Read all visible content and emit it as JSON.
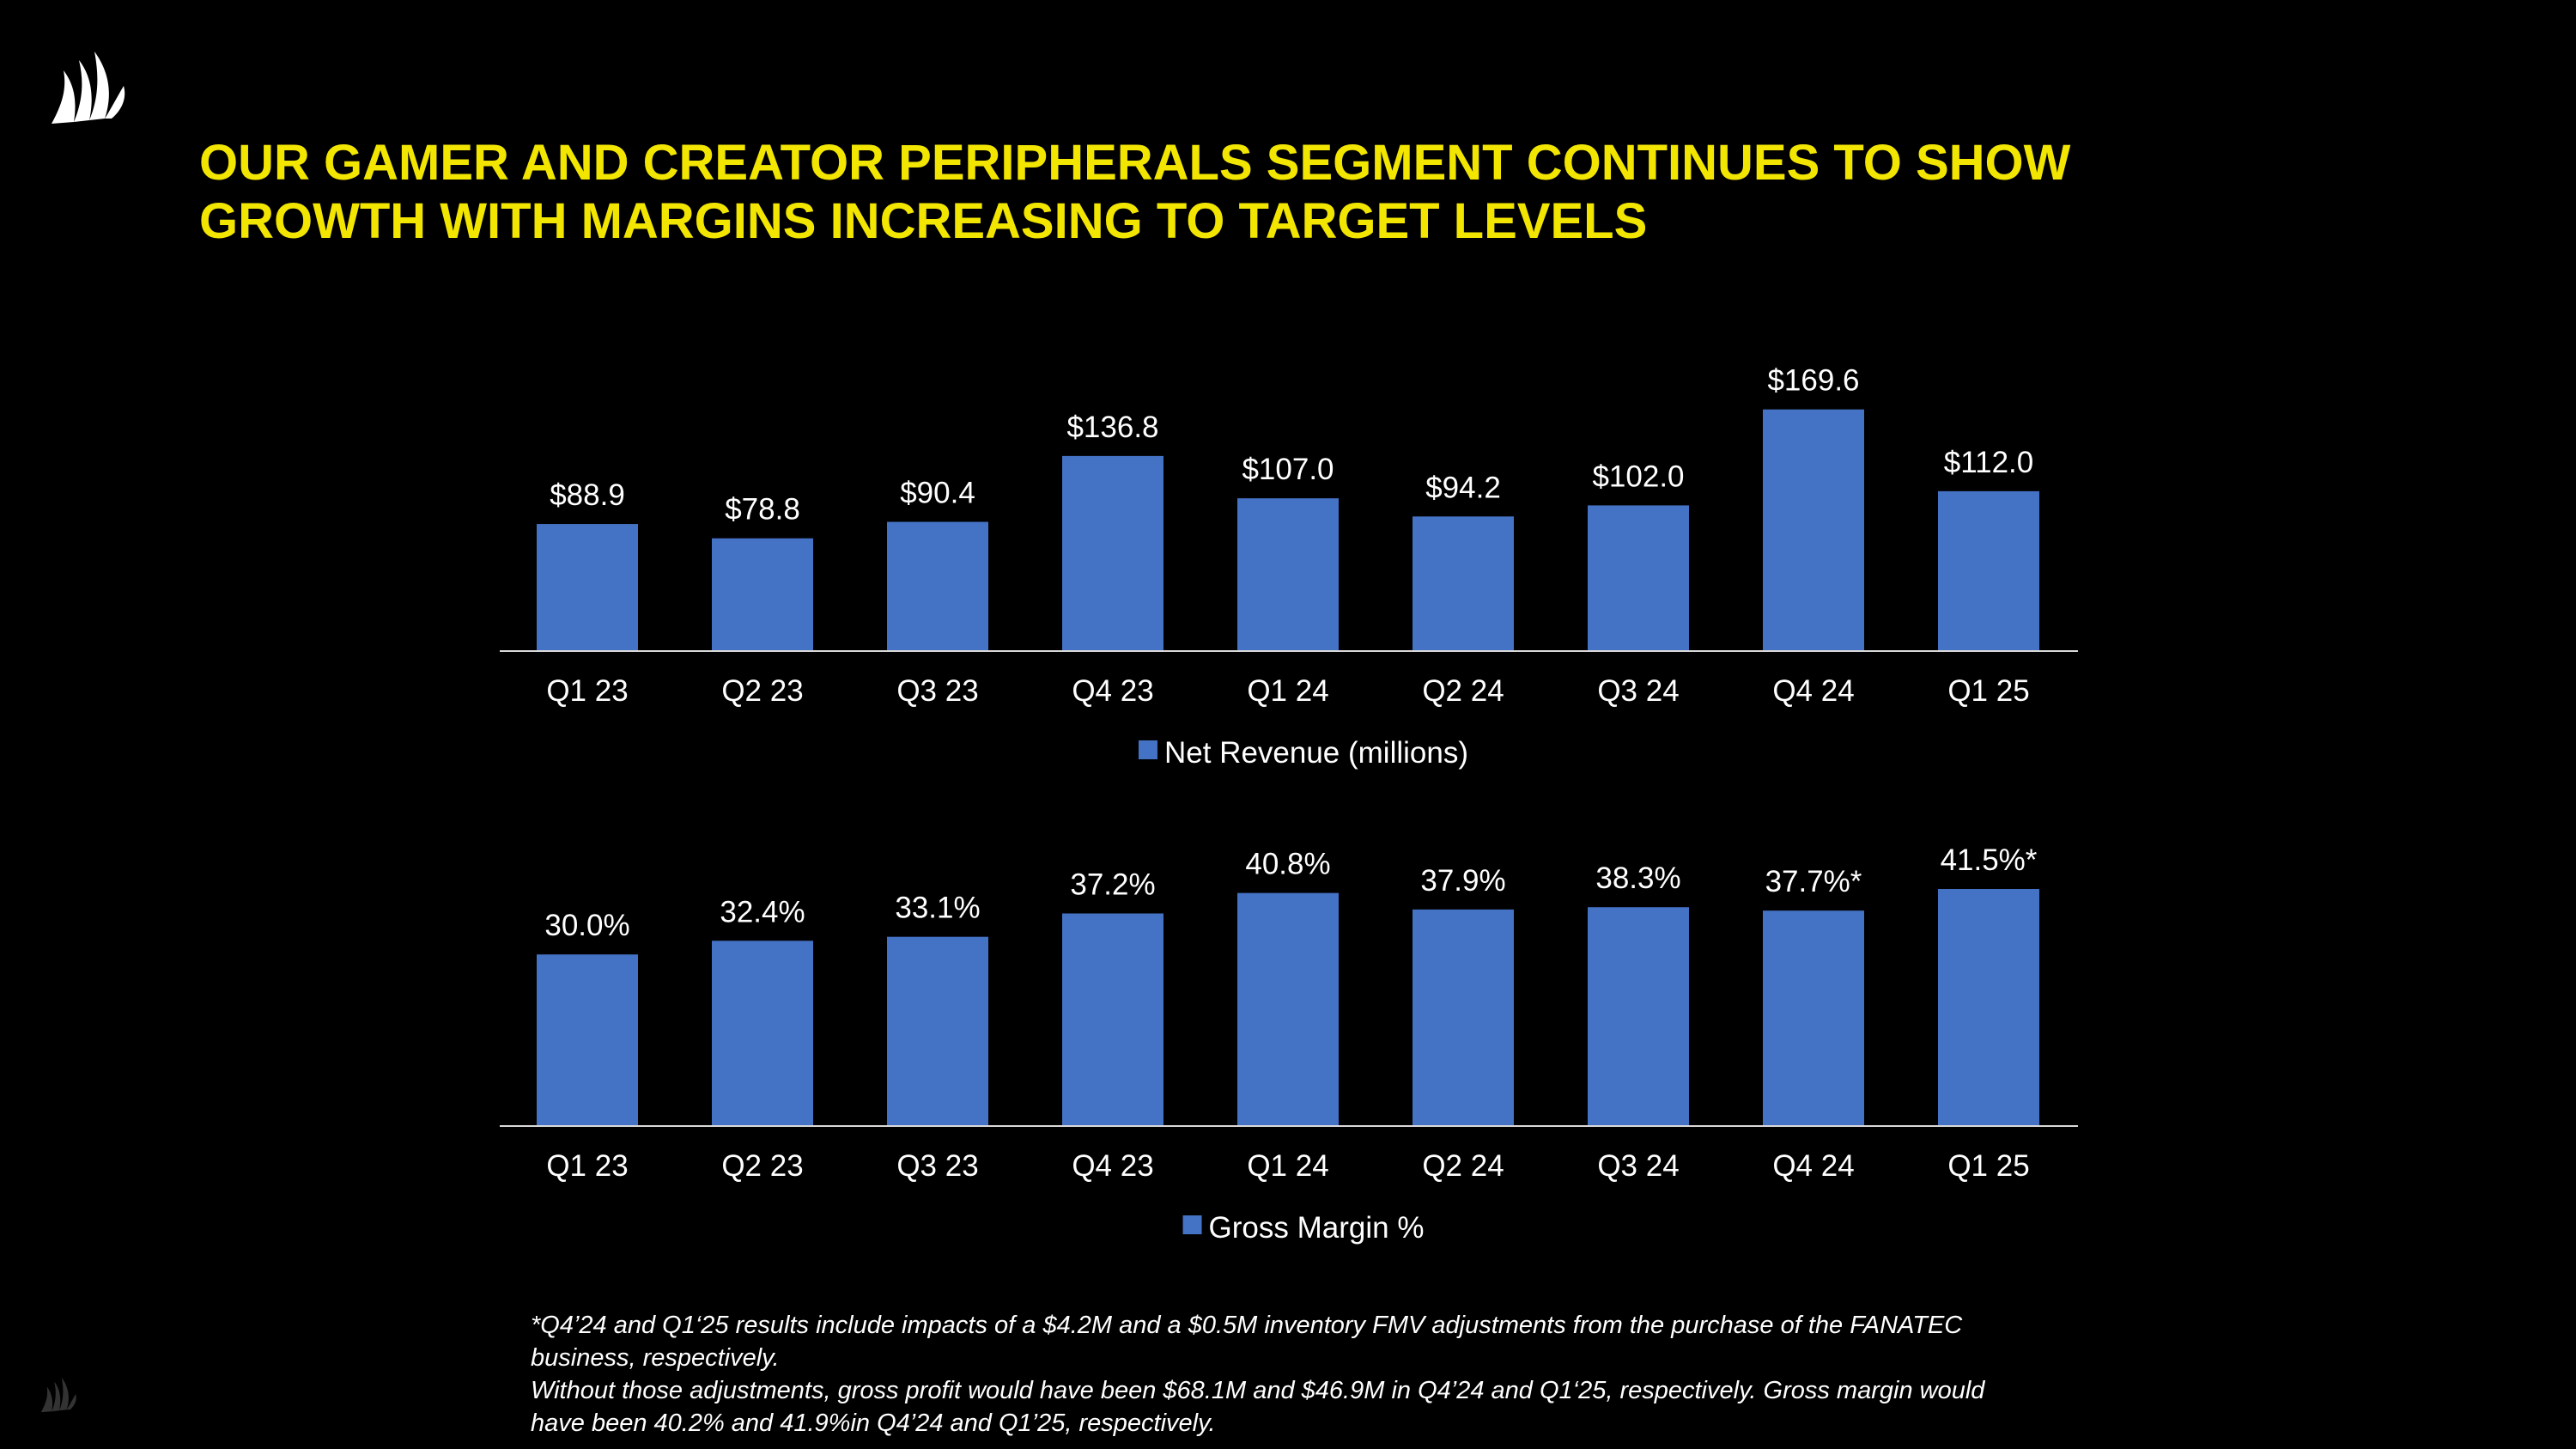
{
  "slide": {
    "title_lines": [
      "OUR GAMER AND CREATOR PERIPHERALS SEGMENT CONTINUES TO SHOW",
      "GROWTH WITH MARGINS INCREASING TO TARGET LEVELS"
    ],
    "footnote_lines": [
      "*Q4’24 and Q1‘25 results include impacts of a $4.2M and a $0.5M inventory FMV adjustments from the purchase of the FANATEC business, respectively.",
      "Without those adjustments, gross profit would have been $68.1M and $46.9M in Q4’24 and Q1‘25, respectively. Gross margin would have been 40.2% and 41.9%in Q4’24 and Q1’25, respectively."
    ],
    "logo_icon": "corsair-sails-logo-icon"
  },
  "colors": {
    "background": "#000000",
    "title": "#f2e600",
    "bar": "#4472c4",
    "text": "#ffffff",
    "axis": "#d9d9d9"
  },
  "chart_data": [
    {
      "type": "bar",
      "categories": [
        "Q1 23",
        "Q2 23",
        "Q3 23",
        "Q4 23",
        "Q1 24",
        "Q2 24",
        "Q3 24",
        "Q4 24",
        "Q1 25"
      ],
      "series": [
        {
          "name": "Net Revenue (millions)",
          "values": [
            88.9,
            78.8,
            90.4,
            136.8,
            107.0,
            94.2,
            102.0,
            169.6,
            112.0
          ],
          "data_labels": [
            "$88.9",
            "$78.8",
            "$90.4",
            "$136.8",
            "$107.0",
            "$94.2",
            "$102.0",
            "$169.6",
            "$112.0"
          ]
        }
      ],
      "ylim": [
        0,
        170
      ],
      "grid": false,
      "legend": "bottom"
    },
    {
      "type": "bar",
      "categories": [
        "Q1 23",
        "Q2 23",
        "Q3 23",
        "Q4 23",
        "Q1 24",
        "Q2 24",
        "Q3 24",
        "Q4 24",
        "Q1 25"
      ],
      "series": [
        {
          "name": "Gross Margin %",
          "values": [
            30.0,
            32.4,
            33.1,
            37.2,
            40.8,
            37.9,
            38.3,
            37.7,
            41.5
          ],
          "data_labels": [
            "30.0%",
            "32.4%",
            "33.1%",
            "37.2%",
            "40.8%",
            "37.9%",
            "38.3%",
            "37.7%*",
            "41.5%*"
          ]
        }
      ],
      "ylim": [
        0,
        41.5
      ],
      "grid": false,
      "legend": "bottom"
    }
  ]
}
